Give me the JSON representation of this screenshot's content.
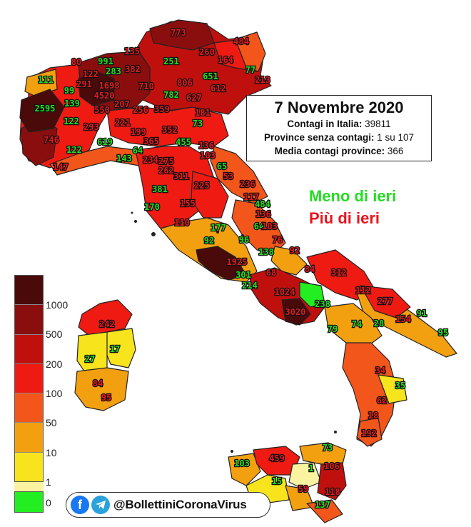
{
  "info": {
    "title": "7 Novembre 2020",
    "line1_label": "Contagi in Italia:",
    "line1_value": "39811",
    "line2_label": "Province senza contagi:",
    "line2_value": "1 su 107",
    "line3_label": "Media contagi province:",
    "line3_value": "366"
  },
  "legend": {
    "less": "Meno di ieri",
    "more": "Più di ieri",
    "less_color": "#22dd22",
    "more_color": "#e8161d"
  },
  "scale": {
    "colors": [
      "#4a0a0a",
      "#8b0e0e",
      "#c0100e",
      "#ef1b12",
      "#f2561b",
      "#f3a010",
      "#f7e41d",
      "#fbf3a0"
    ],
    "labels": [
      "1000",
      "500",
      "200",
      "100",
      "50",
      "10",
      "1"
    ],
    "zero_label": "0",
    "zero_color": "#22ee22"
  },
  "handle": {
    "text": "@BollettiniCoronaVirus",
    "fb_icon": "facebook-icon",
    "tg_icon": "telegram-icon"
  },
  "provinces": [
    {
      "value": "773",
      "trend": "more"
    },
    {
      "value": "484",
      "trend": "more"
    },
    {
      "value": "135",
      "trend": "more"
    },
    {
      "value": "260",
      "trend": "more"
    },
    {
      "value": "164",
      "trend": "more"
    },
    {
      "value": "251",
      "trend": "less"
    },
    {
      "value": "991",
      "trend": "less"
    },
    {
      "value": "283",
      "trend": "less"
    },
    {
      "value": "382",
      "trend": "more"
    },
    {
      "value": "80",
      "trend": "more"
    },
    {
      "value": "122",
      "trend": "more"
    },
    {
      "value": "77",
      "trend": "less"
    },
    {
      "value": "213",
      "trend": "more"
    },
    {
      "value": "651",
      "trend": "less"
    },
    {
      "value": "111",
      "trend": "less"
    },
    {
      "value": "291",
      "trend": "more"
    },
    {
      "value": "1698",
      "trend": "more"
    },
    {
      "value": "710",
      "trend": "more"
    },
    {
      "value": "806",
      "trend": "more"
    },
    {
      "value": "612",
      "trend": "more"
    },
    {
      "value": "99",
      "trend": "less"
    },
    {
      "value": "4520",
      "trend": "more"
    },
    {
      "value": "782",
      "trend": "less"
    },
    {
      "value": "627",
      "trend": "more"
    },
    {
      "value": "139",
      "trend": "less"
    },
    {
      "value": "2595",
      "trend": "less"
    },
    {
      "value": "550",
      "trend": "more"
    },
    {
      "value": "207",
      "trend": "more"
    },
    {
      "value": "256",
      "trend": "more"
    },
    {
      "value": "359",
      "trend": "more"
    },
    {
      "value": "181",
      "trend": "more"
    },
    {
      "value": "122",
      "trend": "less"
    },
    {
      "value": "293",
      "trend": "more"
    },
    {
      "value": "221",
      "trend": "more"
    },
    {
      "value": "73",
      "trend": "less"
    },
    {
      "value": "746",
      "trend": "more"
    },
    {
      "value": "199",
      "trend": "more"
    },
    {
      "value": "352",
      "trend": "more"
    },
    {
      "value": "619",
      "trend": "less"
    },
    {
      "value": "365",
      "trend": "more"
    },
    {
      "value": "455",
      "trend": "less"
    },
    {
      "value": "122",
      "trend": "less"
    },
    {
      "value": "64",
      "trend": "less"
    },
    {
      "value": "143",
      "trend": "less"
    },
    {
      "value": "234",
      "trend": "more"
    },
    {
      "value": "275",
      "trend": "more"
    },
    {
      "value": "103",
      "trend": "more"
    },
    {
      "value": "136",
      "trend": "more"
    },
    {
      "value": "147",
      "trend": "more"
    },
    {
      "value": "262",
      "trend": "more"
    },
    {
      "value": "311",
      "trend": "more"
    },
    {
      "value": "65",
      "trend": "less"
    },
    {
      "value": "53",
      "trend": "more"
    },
    {
      "value": "381",
      "trend": "less"
    },
    {
      "value": "225",
      "trend": "more"
    },
    {
      "value": "236",
      "trend": "more"
    },
    {
      "value": "117",
      "trend": "more"
    },
    {
      "value": "170",
      "trend": "less"
    },
    {
      "value": "155",
      "trend": "more"
    },
    {
      "value": "484",
      "trend": "less"
    },
    {
      "value": "136",
      "trend": "more"
    },
    {
      "value": "64",
      "trend": "less"
    },
    {
      "value": "110",
      "trend": "more"
    },
    {
      "value": "177",
      "trend": "less"
    },
    {
      "value": "103",
      "trend": "more"
    },
    {
      "value": "92",
      "trend": "less"
    },
    {
      "value": "96",
      "trend": "less"
    },
    {
      "value": "76",
      "trend": "more"
    },
    {
      "value": "92",
      "trend": "more"
    },
    {
      "value": "138",
      "trend": "less"
    },
    {
      "value": "1925",
      "trend": "more"
    },
    {
      "value": "301",
      "trend": "less"
    },
    {
      "value": "68",
      "trend": "more"
    },
    {
      "value": "84",
      "trend": "more"
    },
    {
      "value": "312",
      "trend": "more"
    },
    {
      "value": "214",
      "trend": "less"
    },
    {
      "value": "1024",
      "trend": "more"
    },
    {
      "value": "112",
      "trend": "more"
    },
    {
      "value": "277",
      "trend": "more"
    },
    {
      "value": "238",
      "trend": "less"
    },
    {
      "value": "3020",
      "trend": "more"
    },
    {
      "value": "154",
      "trend": "more"
    },
    {
      "value": "91",
      "trend": "less"
    },
    {
      "value": "79",
      "trend": "less"
    },
    {
      "value": "74",
      "trend": "less"
    },
    {
      "value": "28",
      "trend": "less"
    },
    {
      "value": "95",
      "trend": "less"
    },
    {
      "value": "242",
      "trend": "more"
    },
    {
      "value": "17",
      "trend": "less"
    },
    {
      "value": "27",
      "trend": "less"
    },
    {
      "value": "84",
      "trend": "more"
    },
    {
      "value": "95",
      "trend": "more"
    },
    {
      "value": "35",
      "trend": "less"
    },
    {
      "value": "34",
      "trend": "more"
    },
    {
      "value": "62",
      "trend": "more"
    },
    {
      "value": "18",
      "trend": "more"
    },
    {
      "value": "192",
      "trend": "more"
    },
    {
      "value": "73",
      "trend": "less"
    },
    {
      "value": "459",
      "trend": "more"
    },
    {
      "value": "103",
      "trend": "less"
    },
    {
      "value": "1",
      "trend": "less"
    },
    {
      "value": "106",
      "trend": "more"
    },
    {
      "value": "15",
      "trend": "less"
    },
    {
      "value": "59",
      "trend": "more"
    },
    {
      "value": "118",
      "trend": "more"
    },
    {
      "value": "137",
      "trend": "less"
    }
  ]
}
